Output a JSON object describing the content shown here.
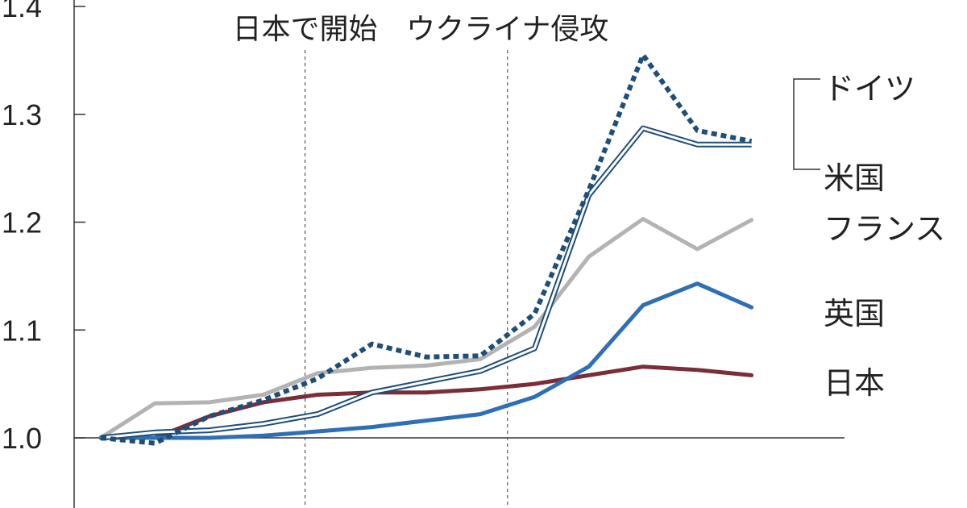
{
  "chart_data": {
    "type": "line",
    "title": "",
    "xlabel": "",
    "ylabel": "",
    "ylim": [
      0.93,
      1.4
    ],
    "y_ticks": [
      "1.0",
      "1.1",
      "1.2",
      "1.3",
      "1.4"
    ],
    "y_tick_values": [
      1.0,
      1.1,
      1.2,
      1.3,
      1.4
    ],
    "x": [
      0,
      1,
      2,
      3,
      4,
      5,
      6,
      7,
      8,
      9,
      10,
      11,
      12,
      13
    ],
    "annotations": [
      {
        "text": "日本で開始",
        "x": 3.5
      },
      {
        "text": "ウクライナ侵攻",
        "x": 7.5
      }
    ],
    "series": [
      {
        "name": "ドイツ",
        "color": "#1f4e79",
        "style": "dotted",
        "values": [
          1.0,
          0.995,
          1.02,
          1.035,
          1.055,
          1.087,
          1.075,
          1.076,
          1.115,
          1.23,
          1.355,
          1.285,
          1.275,
          null
        ]
      },
      {
        "name": "米国",
        "color": "#1f4e79",
        "style": "double",
        "values": [
          1.0,
          1.005,
          1.007,
          1.013,
          1.022,
          1.042,
          1.052,
          1.062,
          1.083,
          1.225,
          1.287,
          1.272,
          1.272,
          null
        ]
      },
      {
        "name": "フランス",
        "color": "#b3b3b3",
        "style": "solid",
        "values": [
          1.0,
          1.032,
          1.033,
          1.04,
          1.06,
          1.065,
          1.067,
          1.073,
          1.103,
          1.168,
          1.203,
          1.175,
          1.202,
          null
        ]
      },
      {
        "name": "英国",
        "color": "#2f6fb6",
        "style": "solid",
        "values": [
          1.0,
          1.0,
          1.0,
          1.002,
          1.006,
          1.01,
          1.016,
          1.022,
          1.038,
          1.066,
          1.123,
          1.143,
          1.121,
          null
        ]
      },
      {
        "name": "日本",
        "color": "#7a2e3a",
        "style": "solid",
        "values": [
          1.0,
          1.0,
          1.02,
          1.033,
          1.04,
          1.042,
          1.042,
          1.045,
          1.05,
          1.058,
          1.066,
          1.063,
          1.058,
          null
        ]
      }
    ],
    "grid": false
  }
}
